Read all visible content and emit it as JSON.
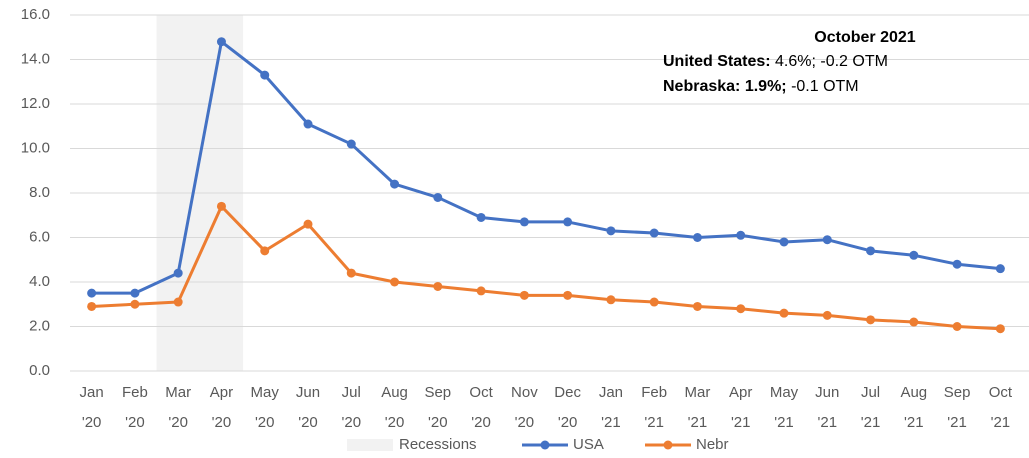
{
  "chart_data": {
    "type": "line",
    "categories": [
      [
        "Jan",
        "'20"
      ],
      [
        "Feb",
        "'20"
      ],
      [
        "Mar",
        "'20"
      ],
      [
        "Apr",
        "'20"
      ],
      [
        "May",
        "'20"
      ],
      [
        "Jun",
        "'20"
      ],
      [
        "Jul",
        "'20"
      ],
      [
        "Aug",
        "'20"
      ],
      [
        "Sep",
        "'20"
      ],
      [
        "Oct",
        "'20"
      ],
      [
        "Nov",
        "'20"
      ],
      [
        "Dec",
        "'20"
      ],
      [
        "Jan",
        "'21"
      ],
      [
        "Feb",
        "'21"
      ],
      [
        "Mar",
        "'21"
      ],
      [
        "Apr",
        "'21"
      ],
      [
        "May",
        "'21"
      ],
      [
        "Jun",
        "'21"
      ],
      [
        "Jul",
        "'21"
      ],
      [
        "Aug",
        "'21"
      ],
      [
        "Sep",
        "'21"
      ],
      [
        "Oct",
        "'21"
      ]
    ],
    "series": [
      {
        "name": "USA",
        "color": "#4472c4",
        "values": [
          3.5,
          3.5,
          4.4,
          14.8,
          13.3,
          11.1,
          10.2,
          8.4,
          7.8,
          6.9,
          6.7,
          6.7,
          6.3,
          6.2,
          6.0,
          6.1,
          5.8,
          5.9,
          5.4,
          5.2,
          4.8,
          4.6
        ]
      },
      {
        "name": "Nebr",
        "color": "#ed7d31",
        "values": [
          2.9,
          3.0,
          3.1,
          7.4,
          5.4,
          6.6,
          4.4,
          4.0,
          3.8,
          3.6,
          3.4,
          3.4,
          3.2,
          3.1,
          2.9,
          2.8,
          2.6,
          2.5,
          2.3,
          2.2,
          2.0,
          1.9
        ]
      }
    ],
    "recession": {
      "name": "Recessions",
      "color": "#f2f2f2",
      "from_index": 2,
      "to_index": 3
    },
    "ylim": [
      0,
      16
    ],
    "yticks": [
      {
        "value": 0,
        "label": "0.0"
      },
      {
        "value": 2,
        "label": "2.0"
      },
      {
        "value": 4,
        "label": "4.0"
      },
      {
        "value": 6,
        "label": "6.0"
      },
      {
        "value": 8,
        "label": "8.0"
      },
      {
        "value": 10,
        "label": "10.0"
      },
      {
        "value": 12,
        "label": "12.0"
      },
      {
        "value": 14,
        "label": "14.0"
      },
      {
        "value": 16,
        "label": "16.0"
      }
    ],
    "grid": true,
    "annotation": {
      "title": "October 2021",
      "lines": [
        {
          "bold": "United States:",
          "text": " 4.6%; -0.2 OTM"
        },
        {
          "bold": "Nebraska: 1.9%;",
          "text": " -0.1 OTM"
        }
      ]
    }
  }
}
